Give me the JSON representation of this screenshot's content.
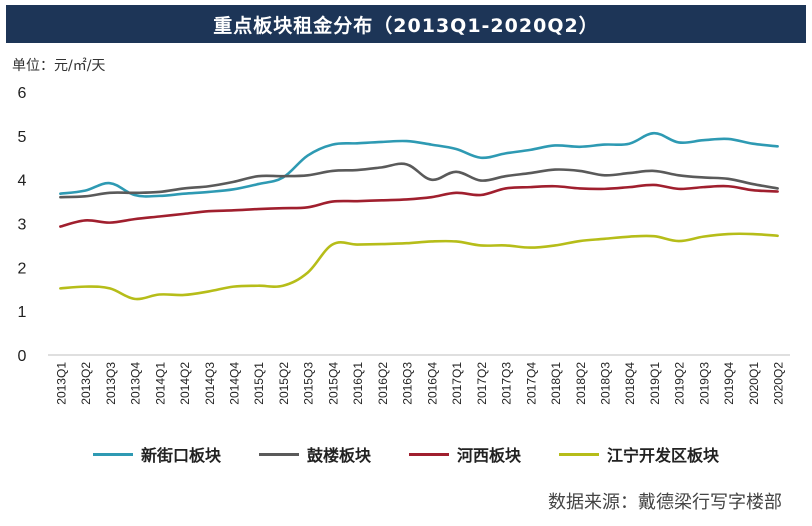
{
  "title": "重点板块租金分布（2013Q1-2020Q2）",
  "unit_label": "单位：元/㎡/天",
  "source": "数据来源：戴德梁行写字楼部",
  "chart_data": {
    "type": "line",
    "title": "重点板块租金分布（2013Q1-2020Q2）",
    "ylabel": "单位：元/㎡/天",
    "ylim": [
      0,
      6
    ],
    "yticks": [
      0,
      1,
      2,
      3,
      4,
      5,
      6
    ],
    "grid": false,
    "legend_position": "bottom",
    "categories": [
      "2013Q1",
      "2013Q2",
      "2013Q3",
      "2013Q4",
      "2014Q1",
      "2014Q2",
      "2014Q3",
      "2014Q4",
      "2015Q1",
      "2015Q2",
      "2015Q3",
      "2015Q4",
      "2016Q1",
      "2016Q2",
      "2016Q3",
      "2016Q4",
      "2017Q1",
      "2017Q2",
      "2017Q3",
      "2017Q4",
      "2018Q1",
      "2018Q2",
      "2018Q3",
      "2018Q4",
      "2019Q1",
      "2019Q2",
      "2019Q3",
      "2019Q4",
      "2020Q1",
      "2020Q2"
    ],
    "series": [
      {
        "name": "新街口板块",
        "color": "#2e9ab3",
        "values": [
          3.68,
          3.75,
          3.92,
          3.65,
          3.63,
          3.68,
          3.72,
          3.78,
          3.9,
          4.05,
          4.55,
          4.8,
          4.83,
          4.86,
          4.88,
          4.8,
          4.7,
          4.5,
          4.6,
          4.68,
          4.78,
          4.75,
          4.8,
          4.82,
          5.06,
          4.85,
          4.9,
          4.93,
          4.82,
          4.76
        ]
      },
      {
        "name": "鼓楼板块",
        "color": "#5a5a5a",
        "values": [
          3.6,
          3.62,
          3.7,
          3.7,
          3.72,
          3.8,
          3.85,
          3.95,
          4.08,
          4.08,
          4.1,
          4.2,
          4.22,
          4.28,
          4.35,
          4.0,
          4.18,
          3.98,
          4.08,
          4.15,
          4.23,
          4.2,
          4.1,
          4.15,
          4.2,
          4.1,
          4.05,
          4.02,
          3.9,
          3.8
        ]
      },
      {
        "name": "河西板块",
        "color": "#a01f2e",
        "values": [
          2.93,
          3.07,
          3.02,
          3.1,
          3.16,
          3.22,
          3.28,
          3.3,
          3.33,
          3.35,
          3.37,
          3.5,
          3.51,
          3.53,
          3.55,
          3.6,
          3.7,
          3.65,
          3.8,
          3.83,
          3.85,
          3.8,
          3.79,
          3.83,
          3.88,
          3.79,
          3.83,
          3.85,
          3.76,
          3.73
        ]
      },
      {
        "name": "江宁开发区板块",
        "color": "#b6bd19",
        "values": [
          1.52,
          1.56,
          1.52,
          1.28,
          1.38,
          1.37,
          1.45,
          1.56,
          1.58,
          1.58,
          1.88,
          2.52,
          2.52,
          2.53,
          2.55,
          2.59,
          2.59,
          2.5,
          2.5,
          2.45,
          2.5,
          2.6,
          2.65,
          2.7,
          2.71,
          2.6,
          2.7,
          2.76,
          2.76,
          2.72
        ]
      }
    ]
  }
}
